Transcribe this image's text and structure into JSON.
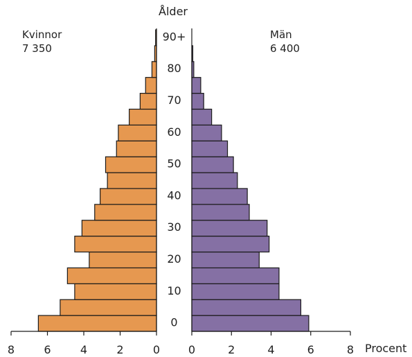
{
  "chart_data": {
    "type": "bar",
    "orientation": "horizontal-pyramid",
    "title": "Ålder",
    "xlabel": "Procent",
    "age_tick_labels": [
      "0",
      "10",
      "20",
      "30",
      "40",
      "50",
      "60",
      "70",
      "80",
      "90+"
    ],
    "age_groups": [
      "0-4",
      "5-9",
      "10-14",
      "15-19",
      "20-24",
      "25-29",
      "30-34",
      "35-39",
      "40-44",
      "45-49",
      "50-54",
      "55-59",
      "60-64",
      "65-69",
      "70-74",
      "75-79",
      "80-84",
      "85-89",
      "90+"
    ],
    "x_tick_labels_left": [
      "8",
      "6",
      "4",
      "2",
      "0"
    ],
    "x_tick_labels_right": [
      "0",
      "2",
      "4",
      "6",
      "8"
    ],
    "xlim": [
      0,
      8
    ],
    "series": [
      {
        "name": "Kvinnor",
        "total": "7 350",
        "side": "left",
        "color": "#e69850",
        "values": [
          6.5,
          5.3,
          4.5,
          4.9,
          3.7,
          4.5,
          4.1,
          3.4,
          3.1,
          2.7,
          2.8,
          2.2,
          2.1,
          1.5,
          0.9,
          0.6,
          0.25,
          0.1,
          0.05
        ]
      },
      {
        "name": "Män",
        "total": "6 400",
        "side": "right",
        "color": "#8570a4",
        "values": [
          5.9,
          5.5,
          4.4,
          4.4,
          3.4,
          3.9,
          3.8,
          2.9,
          2.8,
          2.3,
          2.1,
          1.8,
          1.5,
          1.0,
          0.6,
          0.45,
          0.1,
          0.05,
          0.0
        ]
      }
    ]
  }
}
